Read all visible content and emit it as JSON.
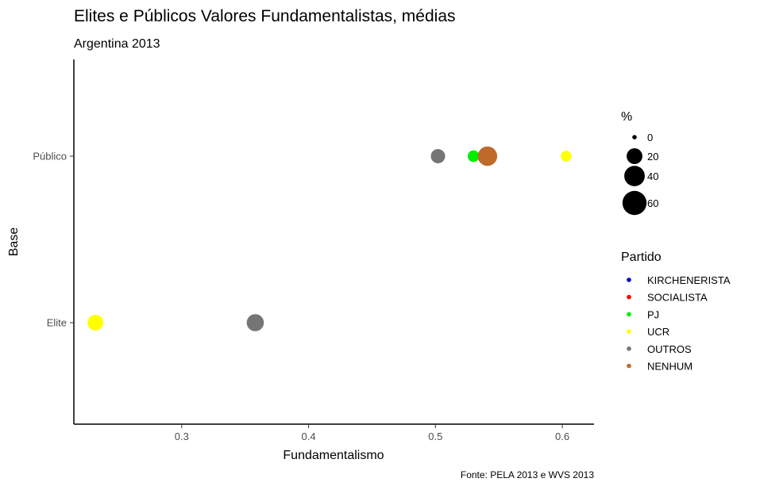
{
  "chart_data": {
    "type": "scatter",
    "title": "Elites e Públicos Valores Fundamentalistas, médias",
    "subtitle": "Argentina 2013",
    "xlabel": "Fundamentalismo",
    "ylabel": "Base",
    "caption": "Fonte: PELA 2013 e WVS 2013",
    "xlim": [
      0.215,
      0.625
    ],
    "x_ticks": [
      0.3,
      0.4,
      0.5,
      0.6
    ],
    "x_tick_labels": [
      "0.3",
      "0.4",
      "0.5",
      "0.6"
    ],
    "categories": [
      "Elite",
      "Público"
    ],
    "size_legend": {
      "title": "%",
      "entries": [
        {
          "label": "0",
          "value": 0
        },
        {
          "label": "20",
          "value": 20
        },
        {
          "label": "40",
          "value": 40
        },
        {
          "label": "60",
          "value": 60
        }
      ]
    },
    "color_legend": {
      "title": "Partido",
      "entries": [
        {
          "label": "KIRCHENERISTA",
          "color": "#0000cd"
        },
        {
          "label": "SOCIALISTA",
          "color": "#ff0000"
        },
        {
          "label": "PJ",
          "color": "#00ee00"
        },
        {
          "label": "UCR",
          "color": "#ffff00"
        },
        {
          "label": "OUTROS",
          "color": "#757575"
        },
        {
          "label": "NENHUM",
          "color": "#bf6a2a"
        }
      ]
    },
    "points": [
      {
        "x": 0.232,
        "y": "Elite",
        "partido": "UCR",
        "size": 20
      },
      {
        "x": 0.358,
        "y": "Elite",
        "partido": "OUTROS",
        "size": 25
      },
      {
        "x": 0.502,
        "y": "Público",
        "partido": "OUTROS",
        "size": 15
      },
      {
        "x": 0.53,
        "y": "Público",
        "partido": "PJ",
        "size": 8
      },
      {
        "x": 0.541,
        "y": "Público",
        "partido": "NENHUM",
        "size": 35
      },
      {
        "x": 0.603,
        "y": "Público",
        "partido": "UCR",
        "size": 6
      }
    ]
  }
}
